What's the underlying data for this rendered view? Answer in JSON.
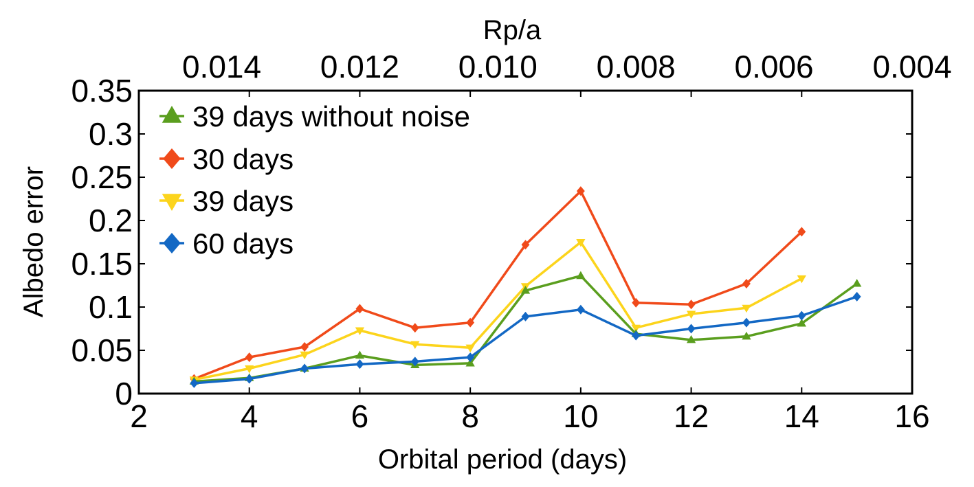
{
  "chart_data": {
    "type": "line",
    "xlabel": "Orbital period (days)",
    "ylabel": "Albedo error",
    "top_xlabel": "Rp/a",
    "xlim": [
      2,
      16
    ],
    "ylim": [
      0,
      0.35
    ],
    "x_ticks": [
      2,
      4,
      6,
      8,
      10,
      12,
      14,
      16
    ],
    "x_tick_labels": [
      "2",
      "4",
      "6",
      "8",
      "10",
      "12",
      "14",
      "16"
    ],
    "y_ticks": [
      0,
      0.05,
      0.1,
      0.15,
      0.2,
      0.25,
      0.3,
      0.35
    ],
    "y_tick_labels": [
      "0",
      "0.05",
      "0.1",
      "0.15",
      "0.2",
      "0.25",
      "0.3",
      "0.35"
    ],
    "top_ticks": [
      {
        "x": 3.5,
        "label": "0.014"
      },
      {
        "x": 6.0,
        "label": "0.012"
      },
      {
        "x": 8.5,
        "label": "0.010"
      },
      {
        "x": 11.0,
        "label": "0.008"
      },
      {
        "x": 13.5,
        "label": "0.006"
      },
      {
        "x": 16.0,
        "label": "0.004"
      }
    ],
    "legend_position": "top-left",
    "series": [
      {
        "name": "39 days without noise",
        "color": "#5a9e1e",
        "marker": "triangle-up",
        "x": [
          3,
          4,
          5,
          6,
          7,
          8,
          9,
          10,
          11,
          12,
          13,
          14,
          15
        ],
        "values": [
          0.014,
          0.018,
          0.029,
          0.044,
          0.033,
          0.035,
          0.119,
          0.136,
          0.069,
          0.062,
          0.066,
          0.081,
          0.127
        ]
      },
      {
        "name": "30 days",
        "color": "#f04a1a",
        "marker": "diamond",
        "x": [
          3,
          4,
          5,
          6,
          7,
          8,
          9,
          10,
          11,
          12,
          13,
          14
        ],
        "values": [
          0.017,
          0.042,
          0.054,
          0.098,
          0.076,
          0.082,
          0.172,
          0.234,
          0.105,
          0.103,
          0.127,
          0.187
        ]
      },
      {
        "name": "39 days",
        "color": "#fcd41c",
        "marker": "triangle-down",
        "x": [
          3,
          4,
          5,
          6,
          7,
          8,
          9,
          10,
          11,
          12,
          13,
          14
        ],
        "values": [
          0.016,
          0.029,
          0.045,
          0.073,
          0.057,
          0.053,
          0.124,
          0.175,
          0.076,
          0.092,
          0.099,
          0.133
        ]
      },
      {
        "name": "60 days",
        "color": "#1368c4",
        "marker": "diamond",
        "x": [
          3,
          4,
          5,
          6,
          7,
          8,
          9,
          10,
          11,
          12,
          13,
          14,
          15
        ],
        "values": [
          0.012,
          0.017,
          0.029,
          0.034,
          0.037,
          0.042,
          0.089,
          0.097,
          0.067,
          0.075,
          0.082,
          0.09,
          0.112
        ]
      }
    ]
  }
}
